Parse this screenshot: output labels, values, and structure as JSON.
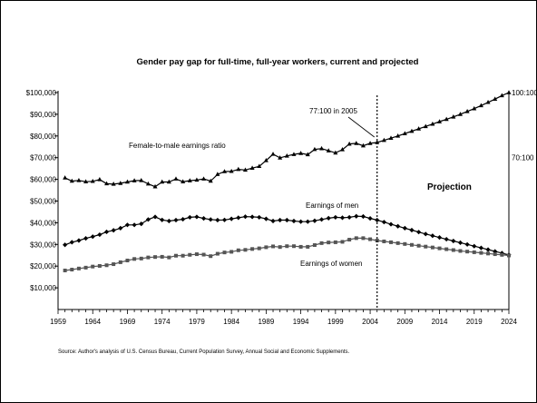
{
  "chart_data": {
    "type": "line",
    "title": "Gender pay gap for full-time, full-year workers, current and projected",
    "x_ticks": [
      1959,
      1964,
      1969,
      1974,
      1979,
      1984,
      1989,
      1994,
      1999,
      2004,
      2009,
      2014,
      2019,
      2024
    ],
    "xlim": [
      1959,
      2024
    ],
    "ylim": [
      0,
      100000
    ],
    "y_ticks": [
      {
        "value": 10000,
        "label": "$10,000"
      },
      {
        "value": 20000,
        "label": "$20,000"
      },
      {
        "value": 30000,
        "label": "$30,000"
      },
      {
        "value": 40000,
        "label": "$40,000"
      },
      {
        "value": 50000,
        "label": "$50,000"
      },
      {
        "value": 60000,
        "label": "$60,000"
      },
      {
        "value": 70000,
        "label": "$70,000"
      },
      {
        "value": 80000,
        "label": "$80,000"
      },
      {
        "value": 90000,
        "label": "$90,000"
      },
      {
        "value": 100000,
        "label": "$100,000"
      }
    ],
    "secondary_axis_labels": [
      {
        "value": 100000,
        "label": "100:100"
      },
      {
        "value": 70000,
        "label": "70:100"
      }
    ],
    "projection_start_year": 2005,
    "series": [
      {
        "name": "Female-to-male earnings ratio",
        "marker": "triangle",
        "color": "#000000",
        "x": [
          1960,
          1961,
          1962,
          1963,
          1964,
          1965,
          1966,
          1967,
          1968,
          1969,
          1970,
          1971,
          1972,
          1973,
          1974,
          1975,
          1976,
          1977,
          1978,
          1979,
          1980,
          1981,
          1982,
          1983,
          1984,
          1985,
          1986,
          1987,
          1988,
          1989,
          1990,
          1991,
          1992,
          1993,
          1994,
          1995,
          1996,
          1997,
          1998,
          1999,
          2000,
          2001,
          2002,
          2003,
          2004,
          2005,
          2006,
          2007,
          2008,
          2009,
          2010,
          2011,
          2012,
          2013,
          2014,
          2015,
          2016,
          2017,
          2018,
          2019,
          2020,
          2021,
          2022,
          2023,
          2024
        ],
        "values": [
          60700,
          59200,
          59500,
          58900,
          59100,
          59900,
          58000,
          57800,
          58200,
          58800,
          59400,
          59500,
          57900,
          56600,
          58800,
          58800,
          60200,
          58900,
          59400,
          59700,
          60200,
          59200,
          62300,
          63600,
          63700,
          64600,
          64300,
          65200,
          66000,
          68700,
          71600,
          69900,
          70800,
          71500,
          72000,
          71400,
          73800,
          74200,
          73200,
          72200,
          73700,
          76300,
          76600,
          75500,
          76600,
          77000,
          78000,
          79000,
          80000,
          81100,
          82200,
          83300,
          84400,
          85500,
          86600,
          87700,
          88800,
          90000,
          91300,
          92600,
          94000,
          95500,
          97000,
          98600,
          100000
        ]
      },
      {
        "name": "Earnings of men",
        "marker": "diamond",
        "color": "#000000",
        "x": [
          1960,
          1961,
          1962,
          1963,
          1964,
          1965,
          1966,
          1967,
          1968,
          1969,
          1970,
          1971,
          1972,
          1973,
          1974,
          1975,
          1976,
          1977,
          1978,
          1979,
          1980,
          1981,
          1982,
          1983,
          1984,
          1985,
          1986,
          1987,
          1988,
          1989,
          1990,
          1991,
          1992,
          1993,
          1994,
          1995,
          1996,
          1997,
          1998,
          1999,
          2000,
          2001,
          2002,
          2003,
          2004,
          2005,
          2006,
          2007,
          2008,
          2009,
          2010,
          2011,
          2012,
          2013,
          2014,
          2015,
          2016,
          2017,
          2018,
          2019,
          2020,
          2021,
          2022,
          2023,
          2024
        ],
        "values": [
          29800,
          31000,
          31800,
          32800,
          33600,
          34500,
          35800,
          36500,
          37500,
          39000,
          39000,
          39500,
          41500,
          42700,
          41300,
          40800,
          41200,
          41600,
          42500,
          42700,
          42000,
          41500,
          41200,
          41300,
          41800,
          42300,
          42800,
          42700,
          42500,
          41800,
          40800,
          41200,
          41200,
          40800,
          40500,
          40500,
          40900,
          41500,
          42100,
          42500,
          42300,
          42500,
          43000,
          42900,
          42000,
          41200,
          40300,
          39300,
          38400,
          37500,
          36600,
          35700,
          34800,
          34000,
          33200,
          32400,
          31600,
          30800,
          30000,
          29200,
          28400,
          27600,
          26800,
          26000,
          25200
        ]
      },
      {
        "name": "Earnings of women",
        "marker": "square",
        "color": "#555555",
        "x": [
          1960,
          1961,
          1962,
          1963,
          1964,
          1965,
          1966,
          1967,
          1968,
          1969,
          1970,
          1971,
          1972,
          1973,
          1974,
          1975,
          1976,
          1977,
          1978,
          1979,
          1980,
          1981,
          1982,
          1983,
          1984,
          1985,
          1986,
          1987,
          1988,
          1989,
          1990,
          1991,
          1992,
          1993,
          1994,
          1995,
          1996,
          1997,
          1998,
          1999,
          2000,
          2001,
          2002,
          2003,
          2004,
          2005,
          2006,
          2007,
          2008,
          2009,
          2010,
          2011,
          2012,
          2013,
          2014,
          2015,
          2016,
          2017,
          2018,
          2019,
          2020,
          2021,
          2022,
          2023,
          2024
        ],
        "values": [
          18000,
          18400,
          18900,
          19300,
          19800,
          20100,
          20400,
          20900,
          21800,
          22600,
          23300,
          23500,
          24000,
          24200,
          24300,
          24000,
          24800,
          24800,
          25200,
          25500,
          25300,
          24600,
          25700,
          26300,
          26600,
          27300,
          27500,
          27900,
          28200,
          28700,
          29100,
          28800,
          29200,
          29200,
          28900,
          28900,
          29700,
          30600,
          30900,
          31000,
          31200,
          32200,
          32900,
          32900,
          32400,
          31800,
          31400,
          31000,
          30600,
          30200,
          29800,
          29400,
          29000,
          28600,
          28200,
          27800,
          27400,
          27000,
          26700,
          26400,
          26100,
          25800,
          25500,
          25200,
          24900
        ]
      }
    ],
    "annotations": {
      "ratio_label": "Female-to-male earnings ratio",
      "men_label": "Earnings of men",
      "women_label": "Earnings of women",
      "callout": "77:100 in 2005",
      "projection": "Projection"
    },
    "source": "Source: Author's analysis of U.S. Census Bureau, Current Population Survey, Annual Social and Economic Supplements.",
    "grid": false,
    "legend": "none"
  }
}
